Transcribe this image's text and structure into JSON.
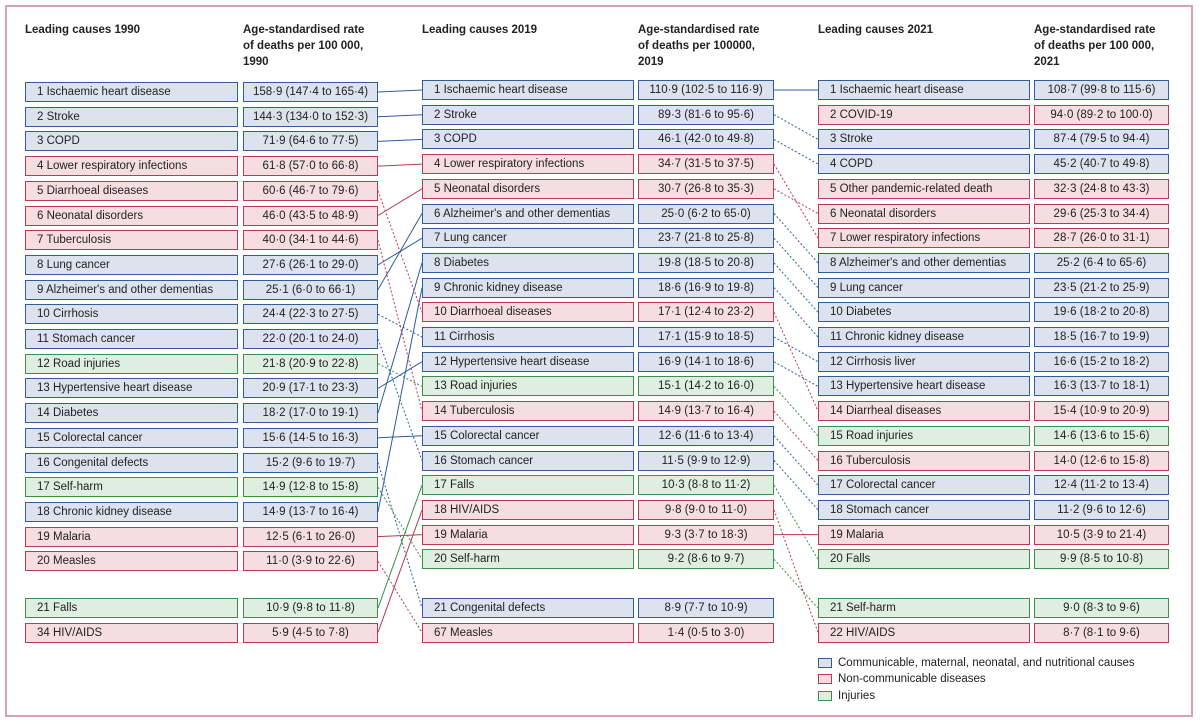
{
  "headers": {
    "c1990": "Leading causes 1990",
    "r1990": [
      "Age-standardised rate",
      "of deaths per 100 000,",
      "1990"
    ],
    "c2019": "Leading causes 2019",
    "r2019": [
      "Age-standardised rate",
      "of deaths per 100000,",
      "2019"
    ],
    "c2021": "Leading causes 2021",
    "r2021": [
      "Age-standardised rate",
      "of deaths per 100 000,",
      "2021"
    ]
  },
  "colors": {
    "cmnn": "#2f5d9e",
    "ncd": "#b93a56",
    "injuries": "#3c8f4a"
  },
  "columns": [
    {
      "year": "1990",
      "rows": [
        {
          "name": "1 Ischaemic heart disease",
          "rate": "158·9 (147·4 to 165·4)",
          "cat": "cmnn",
          "key": "ihd"
        },
        {
          "name": "2 Stroke",
          "rate": "144·3 (134·0 to 152·3)",
          "cat": "cmnn",
          "key": "stroke"
        },
        {
          "name": "3 COPD",
          "rate": "71·9 (64·6 to 77·5)",
          "cat": "cmnn",
          "key": "copd"
        },
        {
          "name": "4 Lower respiratory infections",
          "rate": "61·8 (57·0 to 66·8)",
          "cat": "ncd",
          "key": "lri"
        },
        {
          "name": "5 Diarrhoeal diseases",
          "rate": "60·6 (46·7 to 79·6)",
          "cat": "ncd",
          "key": "diarr"
        },
        {
          "name": "6 Neonatal disorders",
          "rate": "46·0 (43·5 to 48·9)",
          "cat": "ncd",
          "key": "neo"
        },
        {
          "name": "7 Tuberculosis",
          "rate": "40·0 (34·1 to 44·6)",
          "cat": "ncd",
          "key": "tb"
        },
        {
          "name": "8 Lung cancer",
          "rate": "27·6 (26·1 to 29·0)",
          "cat": "cmnn",
          "key": "lung"
        },
        {
          "name": "9 Alzheimer's and other dementias",
          "rate": "25·1 (6·0 to 66·1)",
          "cat": "cmnn",
          "key": "alz"
        },
        {
          "name": "10 Cirrhosis",
          "rate": "24·4 (22·3 to 27·5)",
          "cat": "cmnn",
          "key": "cirr"
        },
        {
          "name": "11 Stomach cancer",
          "rate": "22·0 (20·1 to 24·0)",
          "cat": "cmnn",
          "key": "stom"
        },
        {
          "name": "12 Road injuries",
          "rate": "21·8 (20·9 to 22·8)",
          "cat": "inj",
          "key": "road"
        },
        {
          "name": "13 Hypertensive heart disease",
          "rate": "20·9 (17·1 to 23·3)",
          "cat": "cmnn",
          "key": "hhd"
        },
        {
          "name": "14 Diabetes",
          "rate": "18·2 (17·0 to 19·1)",
          "cat": "cmnn",
          "key": "diab"
        },
        {
          "name": "15 Colorectal cancer",
          "rate": "15·6 (14·5 to 16·3)",
          "cat": "cmnn",
          "key": "colo"
        },
        {
          "name": "16 Congenital defects",
          "rate": "15·2 (9·6 to 19·7)",
          "cat": "cmnn",
          "key": "cong"
        },
        {
          "name": "17 Self-harm",
          "rate": "14·9 (12·8 to 15·8)",
          "cat": "inj",
          "key": "self"
        },
        {
          "name": "18 Chronic kidney disease",
          "rate": "14·9 (13·7 to 16·4)",
          "cat": "cmnn",
          "key": "ckd"
        },
        {
          "name": "19 Malaria",
          "rate": "12·5 (6·1 to 26·0)",
          "cat": "ncd",
          "key": "mal"
        },
        {
          "name": "20 Measles",
          "rate": "11·0 (3·9 to 22·6)",
          "cat": "ncd",
          "key": "meas"
        },
        {
          "name": "21 Falls",
          "rate": "10·9 (9·8 to 11·8)",
          "cat": "inj",
          "key": "falls"
        },
        {
          "name": "34 HIV/AIDS",
          "rate": "5·9 (4·5 to 7·8)",
          "cat": "ncd",
          "key": "hiv"
        }
      ]
    },
    {
      "year": "2019",
      "rows": [
        {
          "name": "1 Ischaemic heart disease",
          "rate": "110·9 (102·5 to 116·9)",
          "cat": "cmnn",
          "key": "ihd"
        },
        {
          "name": "2 Stroke",
          "rate": "89·3 (81·6 to 95·6)",
          "cat": "cmnn",
          "key": "stroke"
        },
        {
          "name": "3 COPD",
          "rate": "46·1 (42·0 to 49·8)",
          "cat": "cmnn",
          "key": "copd"
        },
        {
          "name": "4 Lower respiratory infections",
          "rate": "34·7 (31·5 to 37·5)",
          "cat": "ncd",
          "key": "lri"
        },
        {
          "name": "5 Neonatal disorders",
          "rate": "30·7 (26·8 to 35·3)",
          "cat": "ncd",
          "key": "neo"
        },
        {
          "name": "6 Alzheimer's and other dementias",
          "rate": "25·0 (6·2 to 65·0)",
          "cat": "cmnn",
          "key": "alz"
        },
        {
          "name": "7 Lung cancer",
          "rate": "23·7 (21·8 to 25·8)",
          "cat": "cmnn",
          "key": "lung"
        },
        {
          "name": "8 Diabetes",
          "rate": "19·8 (18·5 to 20·8)",
          "cat": "cmnn",
          "key": "diab"
        },
        {
          "name": "9 Chronic kidney disease",
          "rate": "18·6 (16·9 to 19·8)",
          "cat": "cmnn",
          "key": "ckd"
        },
        {
          "name": "10 Diarrhoeal  diseases",
          "rate": "17·1 (12·4 to 23·2)",
          "cat": "ncd",
          "key": "diarr"
        },
        {
          "name": "11 Cirrhosis",
          "rate": "17·1 (15·9 to 18·5)",
          "cat": "cmnn",
          "key": "cirr"
        },
        {
          "name": "12 Hypertensive heart disease",
          "rate": "16·9 (14·1 to 18·6)",
          "cat": "cmnn",
          "key": "hhd"
        },
        {
          "name": "13 Road injuries",
          "rate": "15·1 (14·2 to 16·0)",
          "cat": "inj",
          "key": "road"
        },
        {
          "name": "14 Tuberculosis",
          "rate": "14·9 (13·7 to 16·4)",
          "cat": "ncd",
          "key": "tb"
        },
        {
          "name": "15 Colorectal cancer",
          "rate": "12·6 (11·6 to 13·4)",
          "cat": "cmnn",
          "key": "colo"
        },
        {
          "name": "16 Stomach cancer",
          "rate": "11·5 (9·9 to 12·9)",
          "cat": "cmnn",
          "key": "stom"
        },
        {
          "name": "17 Falls",
          "rate": "10·3 (8·8 to 11·2)",
          "cat": "inj",
          "key": "falls"
        },
        {
          "name": "18 HIV/AIDS",
          "rate": "9·8 (9·0 to 11·0)",
          "cat": "ncd",
          "key": "hiv"
        },
        {
          "name": "19 Malaria",
          "rate": "9·3 (3·7 to 18·3)",
          "cat": "ncd",
          "key": "mal"
        },
        {
          "name": "20 Self-harm",
          "rate": "9·2 (8·6 to 9·7)",
          "cat": "inj",
          "key": "self"
        },
        {
          "name": "21 Congenital defects",
          "rate": "8·9 (7·7 to 10·9)",
          "cat": "cmnn",
          "key": "cong"
        },
        {
          "name": "67 Measles",
          "rate": "1·4 (0·5 to 3·0)",
          "cat": "ncd",
          "key": "meas"
        }
      ]
    },
    {
      "year": "2021",
      "rows": [
        {
          "name": "1 Ischaemic heart disease",
          "rate": "108·7 (99·8 to 115·6)",
          "cat": "cmnn",
          "key": "ihd"
        },
        {
          "name": "2 COVID-19",
          "rate": "94·0 (89·2 to 100·0)",
          "cat": "ncd",
          "key": "covid"
        },
        {
          "name": "3 Stroke",
          "rate": "87·4 (79·5 to 94·4)",
          "cat": "cmnn",
          "key": "stroke"
        },
        {
          "name": "4 COPD",
          "rate": "45·2 (40·7 to 49·8)",
          "cat": "cmnn",
          "key": "copd"
        },
        {
          "name": "5 Other pandemic-related death",
          "rate": "32·3 (24·8 to 43·3)",
          "cat": "ncd",
          "key": "opr"
        },
        {
          "name": "6 Neonatal disorders",
          "rate": "29·6 (25·3 to 34·4)",
          "cat": "ncd",
          "key": "neo"
        },
        {
          "name": "7 Lower respiratory infections",
          "rate": "28·7 (26·0 to 31·1)",
          "cat": "ncd",
          "key": "lri"
        },
        {
          "name": "8 Alzheimer's and other dementias",
          "rate": "25·2 (6·4 to 65·6)",
          "cat": "cmnn",
          "key": "alz"
        },
        {
          "name": "9 Lung cancer",
          "rate": "23·5 (21·2 to 25·9)",
          "cat": "cmnn",
          "key": "lung"
        },
        {
          "name": "10 Diabetes",
          "rate": "19·6 (18·2 to 20·8)",
          "cat": "cmnn",
          "key": "diab"
        },
        {
          "name": "11 Chronic kidney disease",
          "rate": "18·5 (16·7 to 19·9)",
          "cat": "cmnn",
          "key": "ckd"
        },
        {
          "name": "12 Cirrhosis liver",
          "rate": "16·6 (15·2 to 18·2)",
          "cat": "cmnn",
          "key": "cirr"
        },
        {
          "name": "13 Hypertensive heart disease",
          "rate": "16·3 (13·7 to 18·1)",
          "cat": "cmnn",
          "key": "hhd"
        },
        {
          "name": "14 Diarrheal diseases",
          "rate": "15·4 (10·9 to 20·9)",
          "cat": "ncd",
          "key": "diarr"
        },
        {
          "name": "15 Road injuries",
          "rate": "14·6 (13·6 to 15·6)",
          "cat": "inj",
          "key": "road"
        },
        {
          "name": "16 Tuberculosis",
          "rate": "14·0 (12·6 to 15·8)",
          "cat": "ncd",
          "key": "tb"
        },
        {
          "name": "17 Colorectal cancer",
          "rate": "12·4 (11·2 to 13·4)",
          "cat": "cmnn",
          "key": "colo"
        },
        {
          "name": "18 Stomach cancer",
          "rate": "11·2 (9·6 to 12·6)",
          "cat": "cmnn",
          "key": "stom"
        },
        {
          "name": "19 Malaria",
          "rate": "10·5 (3·9 to 21·4)",
          "cat": "ncd",
          "key": "mal"
        },
        {
          "name": "20 Falls",
          "rate": "9·9 (8·5 to 10·8)",
          "cat": "inj",
          "key": "falls"
        },
        {
          "name": "21 Self-harm",
          "rate": "9·0 (8·3 to 9·6)",
          "cat": "inj",
          "key": "self"
        },
        {
          "name": "22 HIV/AIDS",
          "rate": "8·7 (8·1 to 9·6)",
          "cat": "ncd",
          "key": "hiv"
        }
      ]
    }
  ],
  "legend": [
    {
      "label": "Communicable, maternal, neonatal, and nutritional causes",
      "cat": "cmnn"
    },
    {
      "label": "Non-communicable diseases",
      "cat": "ncd"
    },
    {
      "label": "Injuries",
      "cat": "inj"
    }
  ]
}
